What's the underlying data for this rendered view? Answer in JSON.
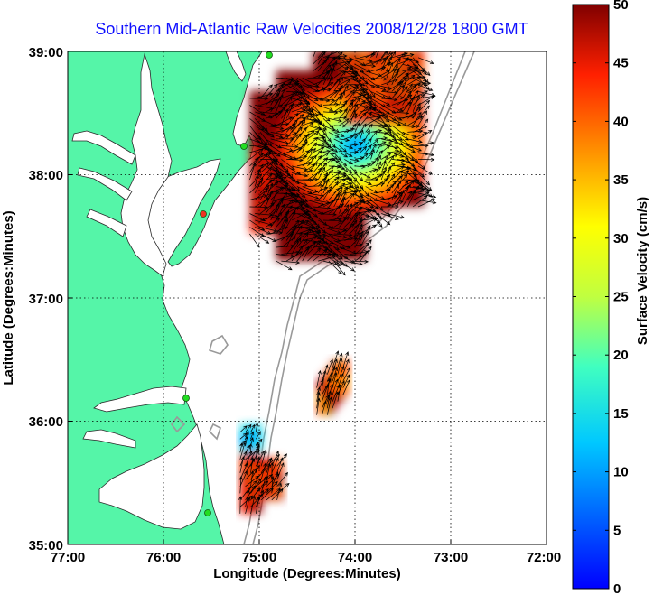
{
  "title": "Southern Mid-Atlantic Raw Velocities 2008/12/28 1800 GMT",
  "axes": {
    "xlabel": "Longitude (Degrees:Minutes)",
    "ylabel": "Latitude (Degrees:Minutes)",
    "xticks": [
      "77:00",
      "76:00",
      "75:00",
      "74:00",
      "73:00",
      "72:00"
    ],
    "yticks": [
      "39:00",
      "38:00",
      "37:00",
      "36:00",
      "35:00"
    ]
  },
  "colorbar": {
    "label": "Surface Velocity (cm/s)",
    "ticks": [
      "0",
      "5",
      "10",
      "15",
      "20",
      "25",
      "30",
      "35",
      "40",
      "45",
      "50"
    ],
    "min": 0,
    "max": 50
  },
  "colors": {
    "title": "#1010ff",
    "land": "#55f5a8",
    "grid": "#000000",
    "bathymetry": "#999999",
    "station": "#22dd22",
    "station_alt": "#ee3322"
  },
  "chart_data": {
    "type": "heatmap",
    "title": "Southern Mid-Atlantic Raw Velocities 2008/12/28 1800 GMT",
    "xlabel": "Longitude (Degrees:Minutes)",
    "ylabel": "Latitude (Degrees:Minutes)",
    "xlim": [
      -77,
      -72
    ],
    "ylim": [
      35,
      39
    ],
    "color_range_cm_s": [
      0,
      50
    ],
    "colorbar_label": "Surface Velocity (cm/s)",
    "grid": true,
    "regions": [
      {
        "name": "northern field",
        "lon": [
          -75.1,
          -73.3
        ],
        "lat": [
          37.3,
          38.95
        ],
        "speed_cm_s": [
          8,
          50
        ]
      },
      {
        "name": "central patch",
        "lon": [
          -74.4,
          -74.1
        ],
        "lat": [
          36.05,
          36.45
        ],
        "speed_cm_s": [
          35,
          50
        ]
      },
      {
        "name": "southern patch",
        "lon": [
          -75.2,
          -74.8
        ],
        "lat": [
          35.25,
          35.95
        ],
        "speed_cm_s": [
          5,
          50
        ]
      }
    ]
  }
}
